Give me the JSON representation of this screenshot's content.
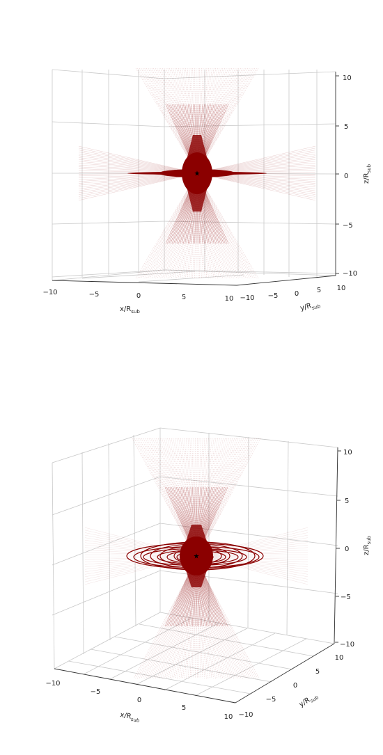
{
  "chart_data": [
    {
      "type": "scatter",
      "view": "edge-on",
      "xlabel": "x/R_sub",
      "ylabel": "y/R_sub",
      "zlabel": "z/R_sub",
      "xlim": [
        -10,
        10
      ],
      "ylim": [
        -10,
        10
      ],
      "zlim": [
        -10,
        10
      ],
      "x_ticks": [
        "−10",
        "−5",
        "0",
        "5",
        "10"
      ],
      "y_ticks": [
        "−10",
        "−5",
        "0",
        "5",
        "10"
      ],
      "z_ticks": [
        "−10",
        "−5",
        "0",
        "5",
        "10"
      ],
      "grid": true,
      "series": [
        {
          "style": "bipolar cone of trajectories",
          "color": "#8b0000"
        },
        {
          "style": "equatorial orbit rings",
          "color": "#8b0000"
        },
        {
          "style": "central source",
          "color": "#000000"
        }
      ]
    },
    {
      "type": "scatter",
      "view": "inclined",
      "xlabel": "x/R_sub",
      "ylabel": "y/R_sub",
      "zlabel": "z/R_sub",
      "xlim": [
        -10,
        10
      ],
      "ylim": [
        -10,
        10
      ],
      "zlim": [
        -10,
        10
      ],
      "x_ticks": [
        "−10",
        "−5",
        "0",
        "5",
        "10"
      ],
      "y_ticks": [
        "−10",
        "−5",
        "0",
        "5",
        "10"
      ],
      "z_ticks": [
        "−10",
        "−5",
        "0",
        "5",
        "10"
      ],
      "grid": true,
      "series": [
        {
          "style": "bipolar cone of trajectories",
          "color": "#8b0000"
        },
        {
          "style": "equatorial orbit rings",
          "color": "#8b0000"
        },
        {
          "style": "central source",
          "color": "#000000"
        }
      ]
    }
  ]
}
